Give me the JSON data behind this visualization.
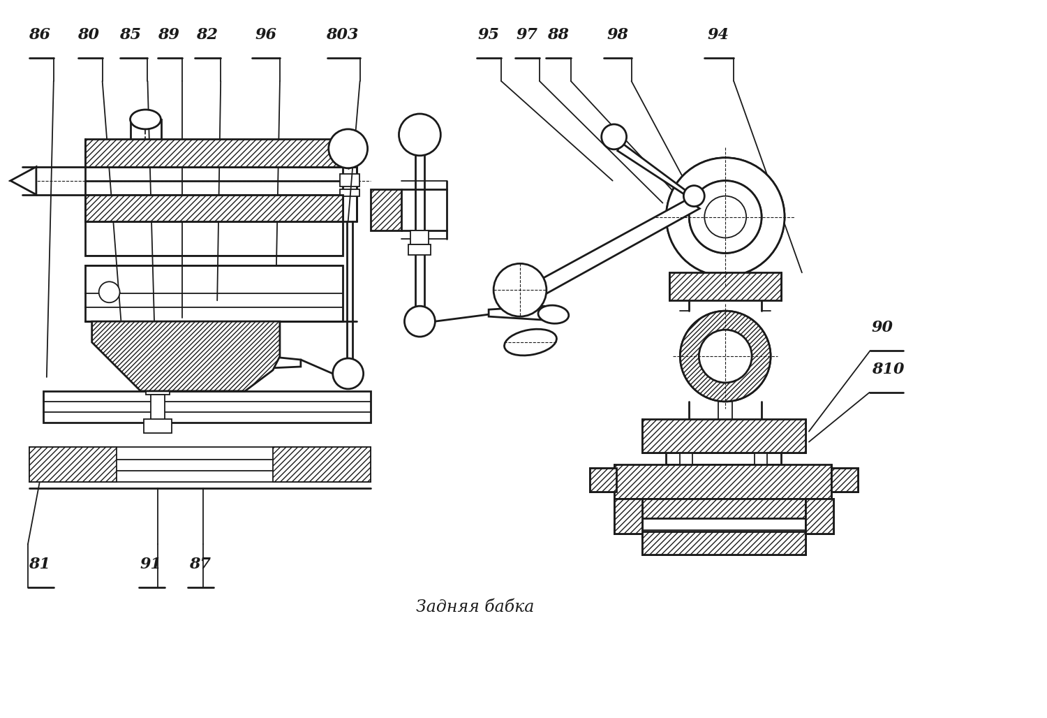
{
  "bg_color": "#ffffff",
  "line_color": "#1a1a1a",
  "font_size": 15,
  "title_text": "Задняя бабка",
  "lw": 1.3,
  "lw2": 2.0
}
